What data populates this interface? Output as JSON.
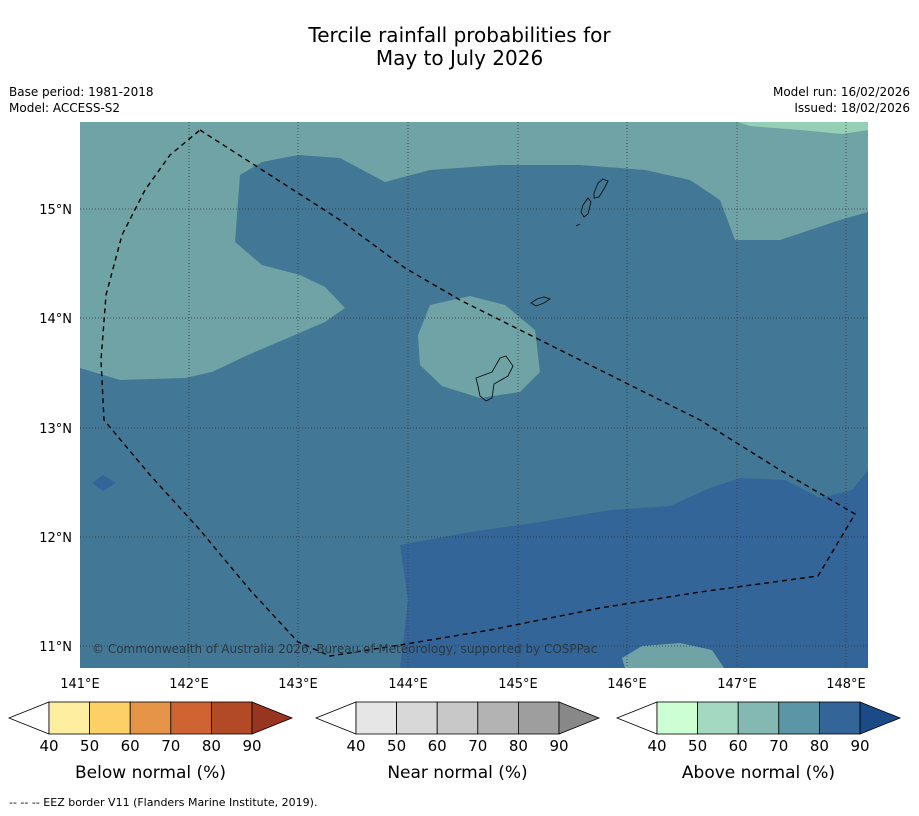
{
  "title_line1": "Tercile rainfall probabilities for",
  "title_line2": "May to July 2026",
  "base_period": "Base period: 1981-2018",
  "model": "Model: ACCESS-S2",
  "model_run": "Model run: 16/02/2026",
  "issued": "Issued: 18/02/2026",
  "copyright": "© Commonwealth of Australia 2026, Bureau of Meteorology, supported by COSPPac",
  "lat_labels": [
    "15°N",
    "14°N",
    "13°N",
    "12°N",
    "11°N"
  ],
  "lon_labels": [
    "141°E",
    "142°E",
    "143°E",
    "144°E",
    "145°E",
    "146°E",
    "147°E",
    "148°E"
  ],
  "colorbars": [
    {
      "label": "Below normal (%)",
      "ticks": [
        "40",
        "50",
        "60",
        "70",
        "80",
        "90"
      ],
      "colors": [
        "#ffffff",
        "#fdeea0",
        "#fdcf67",
        "#e69447",
        "#cf6332",
        "#b34a27",
        "#973521"
      ]
    },
    {
      "label": "Near normal (%)",
      "ticks": [
        "40",
        "50",
        "60",
        "70",
        "80",
        "90"
      ],
      "colors": [
        "#ffffff",
        "#e6e6e6",
        "#d8d8d8",
        "#c8c8c8",
        "#b3b3b3",
        "#9e9e9e",
        "#888888"
      ]
    },
    {
      "label": "Above normal (%)",
      "ticks": [
        "40",
        "50",
        "60",
        "70",
        "80",
        "90"
      ],
      "colors": [
        "#ffffff",
        "#ccffd1",
        "#a5d8c0",
        "#84b9b3",
        "#5b96a6",
        "#336598",
        "#1a4b86"
      ]
    }
  ],
  "map_colors": {
    "class_60_70": "#6fa3a6",
    "class_70_80": "#427896",
    "class_80_90": "#336598",
    "class_50_60": "#95cfb5"
  },
  "footnote": "-- -- -- EEZ border V11 (Flanders Marine Institute, 2019)."
}
